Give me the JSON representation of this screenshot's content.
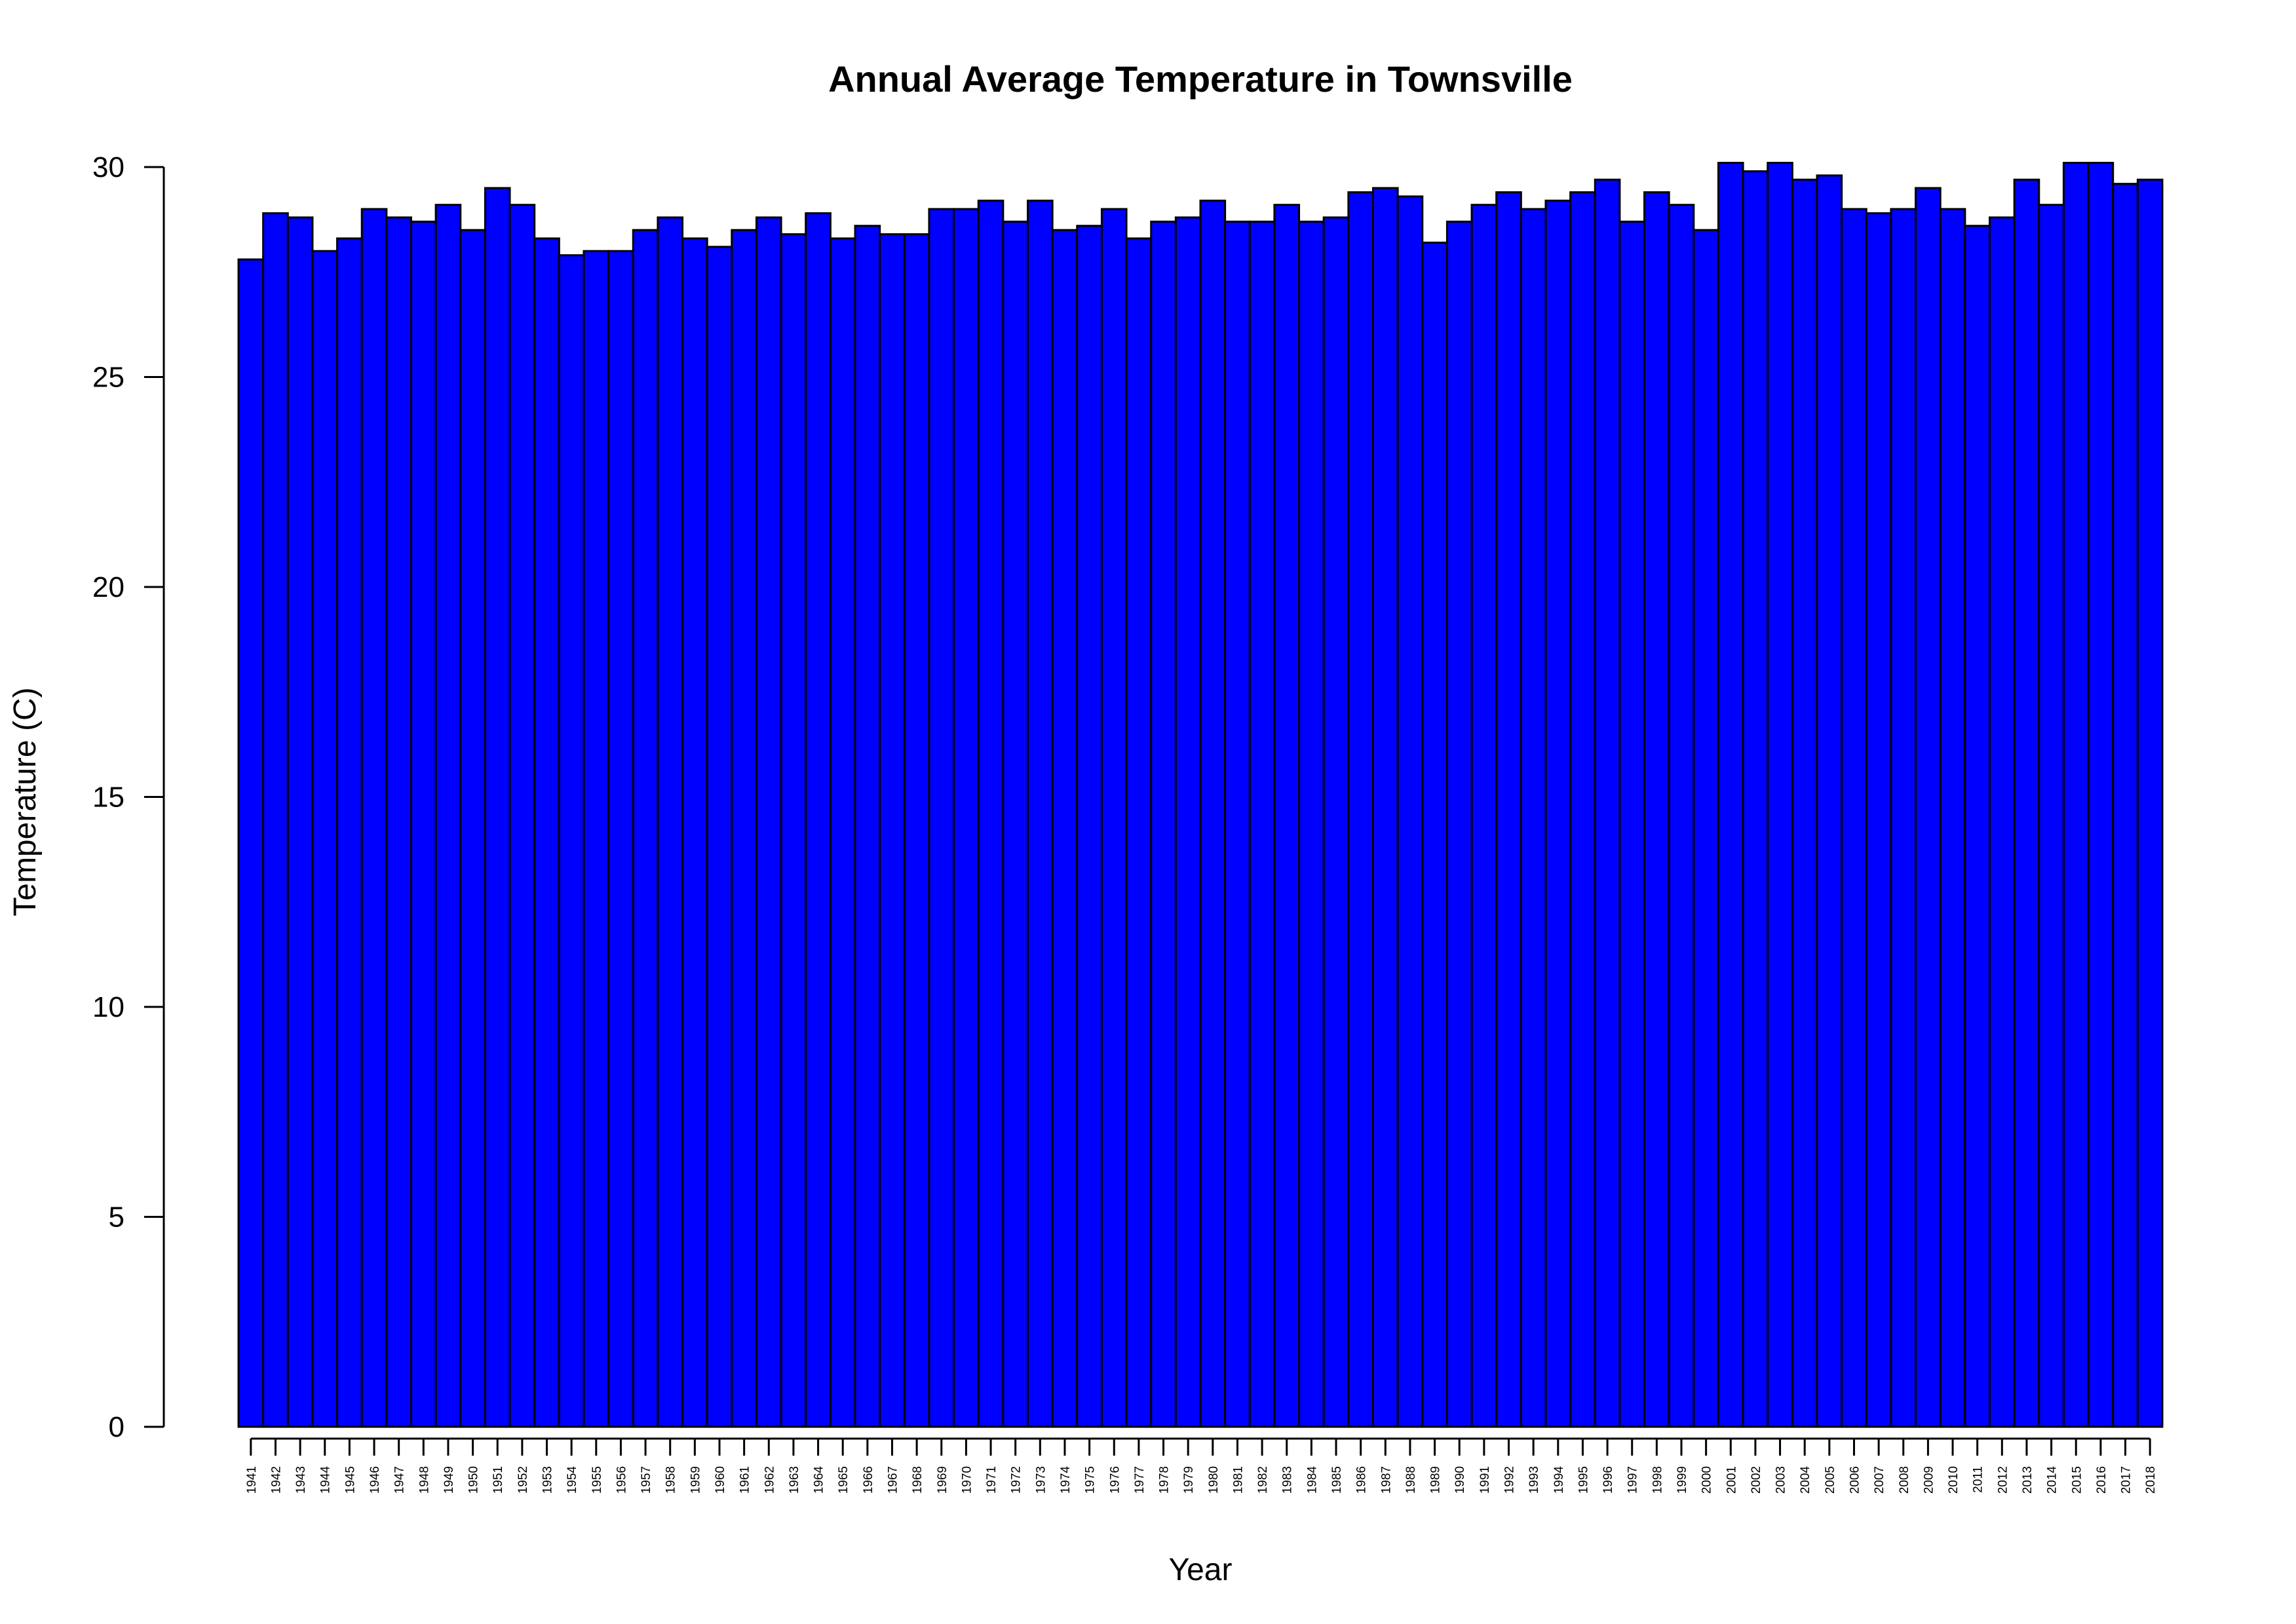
{
  "chart_data": {
    "type": "bar",
    "title": "Annual Average Temperature in Townsville",
    "xlabel": "Year",
    "ylabel": "Temperature (C)",
    "ylim": [
      0,
      30
    ],
    "yticks": [
      "0",
      "5",
      "10",
      "15",
      "20",
      "25",
      "30"
    ],
    "bar_color": "#0000ff",
    "grid": false,
    "categories": [
      "1941",
      "1942",
      "1943",
      "1944",
      "1945",
      "1946",
      "1947",
      "1948",
      "1949",
      "1950",
      "1951",
      "1952",
      "1953",
      "1954",
      "1955",
      "1956",
      "1957",
      "1958",
      "1959",
      "1960",
      "1961",
      "1962",
      "1963",
      "1964",
      "1965",
      "1966",
      "1967",
      "1968",
      "1969",
      "1970",
      "1971",
      "1972",
      "1973",
      "1974",
      "1975",
      "1976",
      "1977",
      "1978",
      "1979",
      "1980",
      "1981",
      "1982",
      "1983",
      "1984",
      "1985",
      "1986",
      "1987",
      "1988",
      "1989",
      "1990",
      "1991",
      "1992",
      "1993",
      "1994",
      "1995",
      "1996",
      "1997",
      "1998",
      "1999",
      "2000",
      "2001",
      "2002",
      "2003",
      "2004",
      "2005",
      "2006",
      "2007",
      "2008",
      "2009",
      "2010",
      "2011",
      "2012",
      "2013",
      "2014",
      "2015",
      "2016",
      "2017",
      "2018"
    ],
    "values": [
      27.8,
      28.9,
      28.8,
      28.0,
      28.3,
      29.0,
      28.8,
      28.7,
      29.1,
      28.5,
      29.5,
      29.1,
      28.3,
      27.9,
      28.0,
      28.0,
      28.5,
      28.8,
      28.3,
      28.1,
      28.5,
      28.8,
      28.4,
      28.9,
      28.3,
      28.6,
      28.4,
      28.4,
      29.0,
      29.0,
      29.2,
      28.7,
      29.2,
      28.5,
      28.6,
      29.0,
      28.3,
      28.7,
      28.8,
      29.2,
      28.7,
      28.7,
      29.1,
      28.7,
      28.8,
      29.4,
      29.5,
      29.3,
      28.2,
      28.7,
      29.1,
      29.4,
      29.0,
      29.2,
      29.4,
      29.7,
      28.7,
      29.4,
      29.1,
      28.5,
      30.1,
      29.9,
      30.1,
      29.7,
      29.8,
      29.0,
      28.9,
      29.0,
      29.5,
      29.0,
      28.6,
      28.8,
      29.7,
      29.1,
      30.1,
      30.1,
      29.6,
      29.7
    ]
  }
}
